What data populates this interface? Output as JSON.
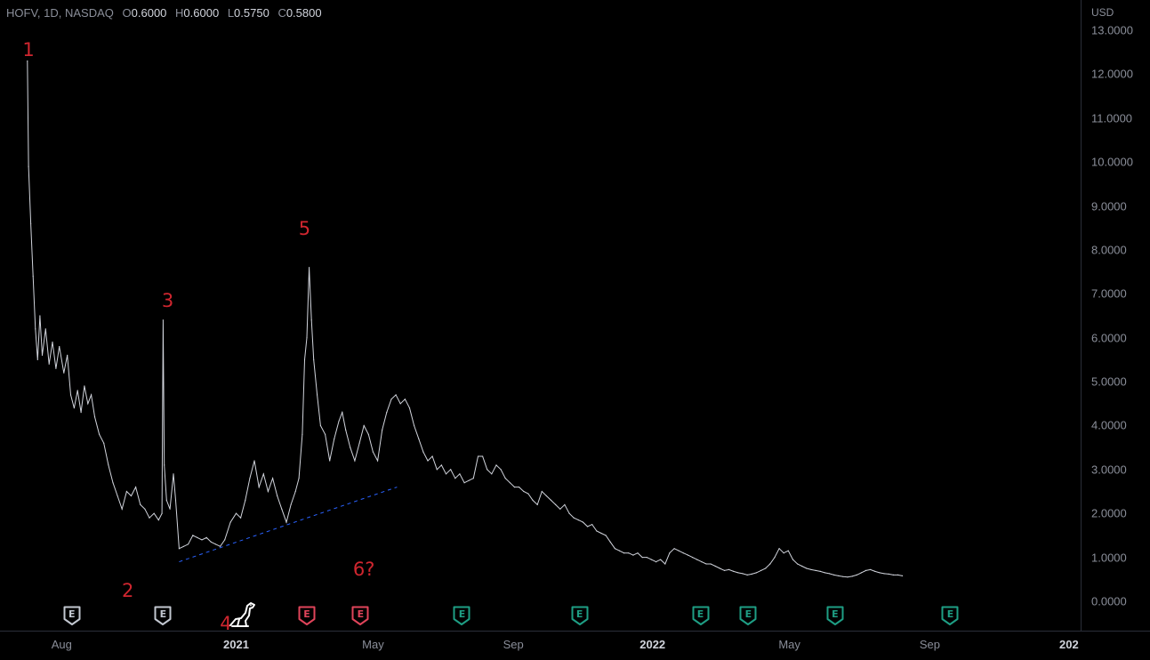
{
  "legend": {
    "symbol": "HOFV, 1D, NASDAQ",
    "open_label": "O",
    "open": "0.6000",
    "high_label": "H",
    "high": "0.6000",
    "low_label": "L",
    "low": "0.5750",
    "close_label": "C",
    "close": "0.5800"
  },
  "axis": {
    "currency": "USD"
  },
  "colors": {
    "background": "#000000",
    "price_line": "#d1d4dc",
    "annotation": "#d0262f",
    "trendline": "#2962ff",
    "earnings_past": "#c2c7d0",
    "earnings_red": "#e0445a",
    "earnings_future": "#1e9e84"
  },
  "chart_data": {
    "type": "line",
    "title": "",
    "xlabel": "",
    "ylabel": "",
    "ylim": [
      0,
      13
    ],
    "y_ticks": [
      "13.0000",
      "12.0000",
      "11.0000",
      "10.0000",
      "9.0000",
      "8.0000",
      "7.0000",
      "6.0000",
      "5.0000",
      "4.0000",
      "3.0000",
      "2.0000",
      "1.0000",
      "0.0000"
    ],
    "x_ticks": [
      {
        "label": "Aug",
        "date": "2020-08-01",
        "bold": false
      },
      {
        "label": "2021",
        "date": "2021-01-01",
        "bold": true
      },
      {
        "label": "May",
        "date": "2021-05-01",
        "bold": false
      },
      {
        "label": "Sep",
        "date": "2021-09-01",
        "bold": false
      },
      {
        "label": "2022",
        "date": "2022-01-01",
        "bold": true
      },
      {
        "label": "May",
        "date": "2022-05-01",
        "bold": false
      },
      {
        "label": "Sep",
        "date": "2022-09-01",
        "bold": false
      },
      {
        "label": "202",
        "date": "2023-01-01",
        "bold": true
      }
    ],
    "xlim": [
      "2020-06-08",
      "2023-01-12"
    ],
    "series": [
      {
        "points": [
          [
            "2020-07-02",
            12.3
          ],
          [
            "2020-07-03",
            9.9
          ],
          [
            "2020-07-05",
            8.6
          ],
          [
            "2020-07-07",
            7.4
          ],
          [
            "2020-07-09",
            6.2
          ],
          [
            "2020-07-11",
            5.5
          ],
          [
            "2020-07-13",
            6.5
          ],
          [
            "2020-07-15",
            5.6
          ],
          [
            "2020-07-18",
            6.2
          ],
          [
            "2020-07-21",
            5.4
          ],
          [
            "2020-07-24",
            5.9
          ],
          [
            "2020-07-27",
            5.3
          ],
          [
            "2020-07-30",
            5.8
          ],
          [
            "2020-08-03",
            5.2
          ],
          [
            "2020-08-06",
            5.6
          ],
          [
            "2020-08-09",
            4.7
          ],
          [
            "2020-08-12",
            4.4
          ],
          [
            "2020-08-15",
            4.8
          ],
          [
            "2020-08-18",
            4.3
          ],
          [
            "2020-08-21",
            4.9
          ],
          [
            "2020-08-24",
            4.5
          ],
          [
            "2020-08-27",
            4.7
          ],
          [
            "2020-08-30",
            4.2
          ],
          [
            "2020-09-03",
            3.8
          ],
          [
            "2020-09-07",
            3.6
          ],
          [
            "2020-09-11",
            3.1
          ],
          [
            "2020-09-15",
            2.7
          ],
          [
            "2020-09-19",
            2.4
          ],
          [
            "2020-09-23",
            2.1
          ],
          [
            "2020-09-27",
            2.5
          ],
          [
            "2020-10-01",
            2.4
          ],
          [
            "2020-10-05",
            2.6
          ],
          [
            "2020-10-09",
            2.2
          ],
          [
            "2020-10-13",
            2.1
          ],
          [
            "2020-10-17",
            1.9
          ],
          [
            "2020-10-21",
            2.0
          ],
          [
            "2020-10-25",
            1.85
          ],
          [
            "2020-10-28",
            2.0
          ],
          [
            "2020-10-29",
            6.4
          ],
          [
            "2020-10-30",
            3.1
          ],
          [
            "2020-11-01",
            2.3
          ],
          [
            "2020-11-04",
            2.1
          ],
          [
            "2020-11-07",
            2.9
          ],
          [
            "2020-11-09",
            2.3
          ],
          [
            "2020-11-12",
            1.2
          ],
          [
            "2020-11-16",
            1.25
          ],
          [
            "2020-11-20",
            1.3
          ],
          [
            "2020-11-24",
            1.5
          ],
          [
            "2020-11-28",
            1.45
          ],
          [
            "2020-12-02",
            1.4
          ],
          [
            "2020-12-06",
            1.45
          ],
          [
            "2020-12-10",
            1.35
          ],
          [
            "2020-12-14",
            1.3
          ],
          [
            "2020-12-18",
            1.25
          ],
          [
            "2020-12-22",
            1.4
          ],
          [
            "2020-12-27",
            1.8
          ],
          [
            "2021-01-01",
            2.0
          ],
          [
            "2021-01-05",
            1.9
          ],
          [
            "2021-01-09",
            2.3
          ],
          [
            "2021-01-13",
            2.8
          ],
          [
            "2021-01-17",
            3.2
          ],
          [
            "2021-01-21",
            2.6
          ],
          [
            "2021-01-25",
            2.9
          ],
          [
            "2021-01-29",
            2.5
          ],
          [
            "2021-02-02",
            2.8
          ],
          [
            "2021-02-06",
            2.4
          ],
          [
            "2021-02-10",
            2.1
          ],
          [
            "2021-02-14",
            1.8
          ],
          [
            "2021-02-18",
            2.2
          ],
          [
            "2021-02-22",
            2.5
          ],
          [
            "2021-02-25",
            2.8
          ],
          [
            "2021-02-28",
            3.8
          ],
          [
            "2021-03-02",
            5.5
          ],
          [
            "2021-03-04",
            6.0
          ],
          [
            "2021-03-06",
            7.6
          ],
          [
            "2021-03-08",
            6.4
          ],
          [
            "2021-03-10",
            5.5
          ],
          [
            "2021-03-13",
            4.7
          ],
          [
            "2021-03-16",
            4.0
          ],
          [
            "2021-03-20",
            3.8
          ],
          [
            "2021-03-24",
            3.2
          ],
          [
            "2021-03-28",
            3.7
          ],
          [
            "2021-04-01",
            4.1
          ],
          [
            "2021-04-04",
            4.3
          ],
          [
            "2021-04-07",
            3.9
          ],
          [
            "2021-04-11",
            3.5
          ],
          [
            "2021-04-15",
            3.2
          ],
          [
            "2021-04-19",
            3.6
          ],
          [
            "2021-04-23",
            4.0
          ],
          [
            "2021-04-27",
            3.8
          ],
          [
            "2021-05-01",
            3.4
          ],
          [
            "2021-05-05",
            3.2
          ],
          [
            "2021-05-09",
            3.9
          ],
          [
            "2021-05-13",
            4.3
          ],
          [
            "2021-05-17",
            4.6
          ],
          [
            "2021-05-21",
            4.7
          ],
          [
            "2021-05-25",
            4.5
          ],
          [
            "2021-05-29",
            4.6
          ],
          [
            "2021-06-02",
            4.4
          ],
          [
            "2021-06-06",
            4.0
          ],
          [
            "2021-06-10",
            3.7
          ],
          [
            "2021-06-14",
            3.4
          ],
          [
            "2021-06-18",
            3.2
          ],
          [
            "2021-06-22",
            3.3
          ],
          [
            "2021-06-26",
            3.0
          ],
          [
            "2021-06-30",
            3.1
          ],
          [
            "2021-07-04",
            2.9
          ],
          [
            "2021-07-08",
            3.0
          ],
          [
            "2021-07-12",
            2.8
          ],
          [
            "2021-07-16",
            2.9
          ],
          [
            "2021-07-20",
            2.7
          ],
          [
            "2021-07-24",
            2.75
          ],
          [
            "2021-07-28",
            2.8
          ],
          [
            "2021-08-01",
            3.3
          ],
          [
            "2021-08-05",
            3.3
          ],
          [
            "2021-08-09",
            3.0
          ],
          [
            "2021-08-13",
            2.9
          ],
          [
            "2021-08-17",
            3.1
          ],
          [
            "2021-08-21",
            3.0
          ],
          [
            "2021-08-25",
            2.8
          ],
          [
            "2021-08-29",
            2.7
          ],
          [
            "2021-09-02",
            2.6
          ],
          [
            "2021-09-06",
            2.6
          ],
          [
            "2021-09-10",
            2.5
          ],
          [
            "2021-09-14",
            2.45
          ],
          [
            "2021-09-18",
            2.3
          ],
          [
            "2021-09-22",
            2.2
          ],
          [
            "2021-09-26",
            2.5
          ],
          [
            "2021-09-30",
            2.4
          ],
          [
            "2021-10-04",
            2.3
          ],
          [
            "2021-10-08",
            2.2
          ],
          [
            "2021-10-12",
            2.1
          ],
          [
            "2021-10-16",
            2.2
          ],
          [
            "2021-10-20",
            2.0
          ],
          [
            "2021-10-24",
            1.9
          ],
          [
            "2021-10-28",
            1.85
          ],
          [
            "2021-11-01",
            1.8
          ],
          [
            "2021-11-05",
            1.7
          ],
          [
            "2021-11-09",
            1.75
          ],
          [
            "2021-11-13",
            1.6
          ],
          [
            "2021-11-17",
            1.55
          ],
          [
            "2021-11-21",
            1.5
          ],
          [
            "2021-11-25",
            1.35
          ],
          [
            "2021-11-29",
            1.2
          ],
          [
            "2021-12-03",
            1.15
          ],
          [
            "2021-12-07",
            1.1
          ],
          [
            "2021-12-11",
            1.1
          ],
          [
            "2021-12-15",
            1.05
          ],
          [
            "2021-12-19",
            1.1
          ],
          [
            "2021-12-23",
            1.0
          ],
          [
            "2021-12-27",
            1.0
          ],
          [
            "2021-12-31",
            0.95
          ],
          [
            "2022-01-04",
            0.9
          ],
          [
            "2022-01-08",
            0.95
          ],
          [
            "2022-01-12",
            0.85
          ],
          [
            "2022-01-16",
            1.1
          ],
          [
            "2022-01-20",
            1.2
          ],
          [
            "2022-01-24",
            1.15
          ],
          [
            "2022-01-28",
            1.1
          ],
          [
            "2022-02-01",
            1.05
          ],
          [
            "2022-02-05",
            1.0
          ],
          [
            "2022-02-09",
            0.95
          ],
          [
            "2022-02-13",
            0.9
          ],
          [
            "2022-02-17",
            0.85
          ],
          [
            "2022-02-21",
            0.85
          ],
          [
            "2022-02-25",
            0.8
          ],
          [
            "2022-03-01",
            0.75
          ],
          [
            "2022-03-05",
            0.7
          ],
          [
            "2022-03-09",
            0.72
          ],
          [
            "2022-03-13",
            0.68
          ],
          [
            "2022-03-17",
            0.65
          ],
          [
            "2022-03-21",
            0.63
          ],
          [
            "2022-03-25",
            0.6
          ],
          [
            "2022-03-29",
            0.62
          ],
          [
            "2022-04-02",
            0.65
          ],
          [
            "2022-04-06",
            0.7
          ],
          [
            "2022-04-10",
            0.75
          ],
          [
            "2022-04-14",
            0.85
          ],
          [
            "2022-04-18",
            1.0
          ],
          [
            "2022-04-22",
            1.2
          ],
          [
            "2022-04-26",
            1.1
          ],
          [
            "2022-04-30",
            1.15
          ],
          [
            "2022-05-04",
            0.95
          ],
          [
            "2022-05-08",
            0.85
          ],
          [
            "2022-05-12",
            0.8
          ],
          [
            "2022-05-16",
            0.75
          ],
          [
            "2022-05-20",
            0.72
          ],
          [
            "2022-05-24",
            0.7
          ],
          [
            "2022-05-28",
            0.68
          ],
          [
            "2022-06-01",
            0.65
          ],
          [
            "2022-06-05",
            0.63
          ],
          [
            "2022-06-09",
            0.6
          ],
          [
            "2022-06-13",
            0.58
          ],
          [
            "2022-06-17",
            0.56
          ],
          [
            "2022-06-21",
            0.55
          ],
          [
            "2022-06-25",
            0.57
          ],
          [
            "2022-06-29",
            0.6
          ],
          [
            "2022-07-03",
            0.65
          ],
          [
            "2022-07-07",
            0.7
          ],
          [
            "2022-07-11",
            0.72
          ],
          [
            "2022-07-15",
            0.68
          ],
          [
            "2022-07-19",
            0.65
          ],
          [
            "2022-07-23",
            0.63
          ],
          [
            "2022-07-27",
            0.62
          ],
          [
            "2022-07-31",
            0.6
          ],
          [
            "2022-08-04",
            0.6
          ],
          [
            "2022-08-08",
            0.58
          ]
        ]
      }
    ],
    "trendline": {
      "from": [
        "2020-11-12",
        0.9
      ],
      "to": [
        "2021-05-22",
        2.6
      ],
      "style": "dashed"
    },
    "annotations": [
      {
        "text": "1",
        "date": "2020-07-03",
        "y": 12.55
      },
      {
        "text": "2",
        "date": "2020-09-28",
        "y": 0.25
      },
      {
        "text": "3",
        "date": "2020-11-02",
        "y": 6.85
      },
      {
        "text": "4",
        "date": "2020-12-23",
        "y": -0.5
      },
      {
        "text": "5",
        "date": "2021-03-02",
        "y": 8.48
      },
      {
        "text": "6?",
        "date": "2021-04-23",
        "y": 0.72
      }
    ],
    "earnings": [
      {
        "date": "2020-08-10",
        "kind": "past"
      },
      {
        "date": "2020-10-29",
        "kind": "past"
      },
      {
        "date": "2021-03-04",
        "kind": "red"
      },
      {
        "date": "2021-04-20",
        "kind": "red"
      },
      {
        "date": "2021-07-18",
        "kind": "future"
      },
      {
        "date": "2021-10-29",
        "kind": "future"
      },
      {
        "date": "2022-02-12",
        "kind": "future"
      },
      {
        "date": "2022-03-26",
        "kind": "future"
      },
      {
        "date": "2022-06-10",
        "kind": "future"
      },
      {
        "date": "2022-09-19",
        "kind": "future"
      }
    ],
    "earnings_label": "E",
    "grid": false,
    "legend": "top-left"
  }
}
